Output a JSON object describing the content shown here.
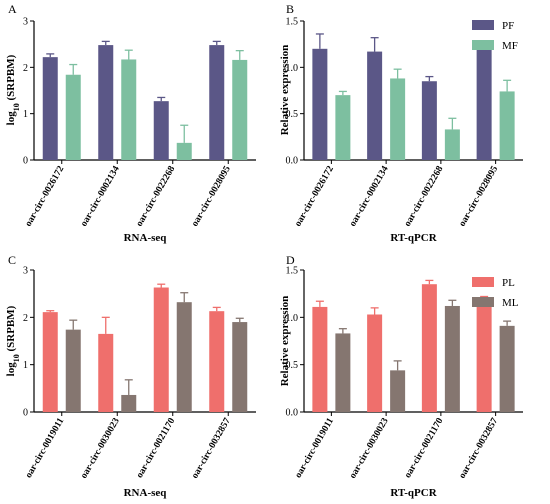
{
  "chart_data": [
    {
      "panel": "A",
      "type": "bar",
      "categories": [
        "oar-circ-0026172",
        "oar-circ-0002134",
        "oar-circ-0022268",
        "oar-circ-0028095"
      ],
      "series": [
        {
          "name": "PF",
          "values": [
            2.22,
            2.48,
            1.27,
            2.48
          ],
          "errors": [
            0.07,
            0.08,
            0.08,
            0.08
          ]
        },
        {
          "name": "MF",
          "values": [
            1.84,
            2.17,
            0.37,
            2.16
          ],
          "errors": [
            0.22,
            0.2,
            0.38,
            0.2
          ]
        }
      ],
      "xlabel": "RNA-seq",
      "ylabel": "log10 (SRPBM)",
      "ylabel_main": "log",
      "ylabel_sub": "10",
      "ylabel_rest": " (SRPBM)",
      "ylim": [
        0,
        3
      ],
      "yticks": [
        "0",
        "1",
        "2",
        "3"
      ],
      "legend": "none",
      "colors": [
        "#5b5787",
        "#7dbfa0"
      ]
    },
    {
      "panel": "B",
      "type": "bar",
      "categories": [
        "oar-circ-0026172",
        "oar-circ-0002134",
        "oar-circ-0022268",
        "oar-circ-0028095"
      ],
      "series": [
        {
          "name": "PF",
          "values": [
            1.2,
            1.17,
            0.85,
            1.2
          ],
          "errors": [
            0.16,
            0.15,
            0.05,
            0.08
          ]
        },
        {
          "name": "MF",
          "values": [
            0.7,
            0.88,
            0.33,
            0.74
          ],
          "errors": [
            0.04,
            0.1,
            0.12,
            0.12
          ]
        }
      ],
      "xlabel": "RT-qPCR",
      "ylabel": "Relative expression",
      "ylim": [
        0,
        1.5
      ],
      "yticks": [
        "0.0",
        "0.5",
        "1.0",
        "1.5"
      ],
      "legend": "top-right",
      "colors": [
        "#5b5787",
        "#7dbfa0"
      ]
    },
    {
      "panel": "C",
      "type": "bar",
      "categories": [
        "oar-circ-0019011",
        "oar-circ-0030023",
        "oar-circ-0021170",
        "oar-circ-0032857"
      ],
      "series": [
        {
          "name": "PL",
          "values": [
            2.11,
            1.65,
            2.63,
            2.13
          ],
          "errors": [
            0.03,
            0.35,
            0.07,
            0.08
          ]
        },
        {
          "name": "ML",
          "values": [
            1.74,
            0.36,
            2.32,
            1.9
          ],
          "errors": [
            0.2,
            0.32,
            0.2,
            0.08
          ]
        }
      ],
      "xlabel": "RNA-seq",
      "ylabel": "log10 (SRPBM)",
      "ylabel_main": "log",
      "ylabel_sub": "10",
      "ylabel_rest": " (SRPBM)",
      "ylim": [
        0,
        3
      ],
      "yticks": [
        "0",
        "1",
        "2",
        "3"
      ],
      "legend": "none",
      "colors": [
        "#ef6f6c",
        "#857670"
      ]
    },
    {
      "panel": "D",
      "type": "bar",
      "categories": [
        "oar-circ-0019011",
        "oar-circ-0030023",
        "oar-circ-0021170",
        "oar-circ-0032857"
      ],
      "series": [
        {
          "name": "PL",
          "values": [
            1.11,
            1.03,
            1.35,
            1.13
          ],
          "errors": [
            0.06,
            0.07,
            0.04,
            0.09
          ]
        },
        {
          "name": "ML",
          "values": [
            0.83,
            0.44,
            1.12,
            0.91
          ],
          "errors": [
            0.05,
            0.1,
            0.06,
            0.05
          ]
        }
      ],
      "xlabel": "RT-qPCR",
      "ylabel": "Relative expression",
      "ylim": [
        0,
        1.5
      ],
      "yticks": [
        "0.0",
        "0.5",
        "1.0",
        "1.5"
      ],
      "legend": "top-right",
      "colors": [
        "#ef6f6c",
        "#857670"
      ]
    }
  ]
}
